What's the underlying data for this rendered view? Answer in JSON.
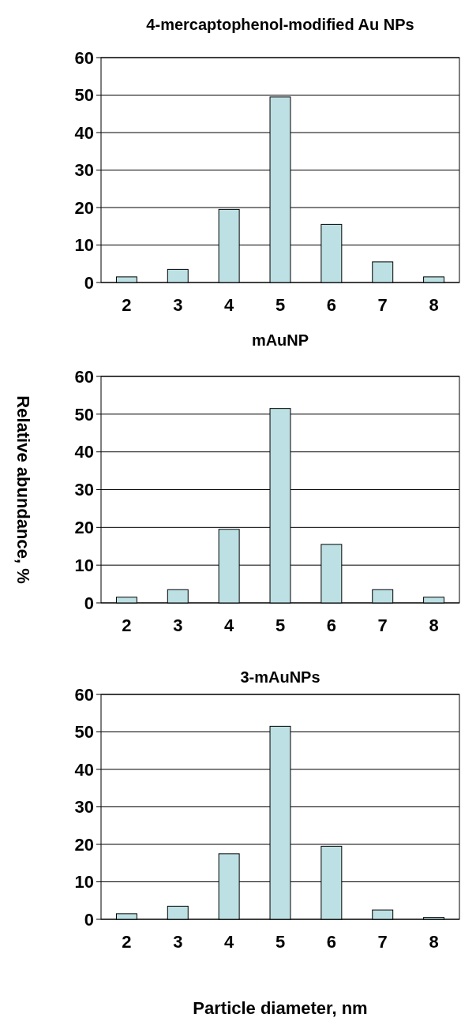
{
  "chart_data": [
    {
      "type": "bar",
      "title": "4-mercaptophenol-modified Au NPs",
      "categories": [
        "2",
        "3",
        "4",
        "5",
        "6",
        "7",
        "8"
      ],
      "values": [
        1.5,
        3.5,
        19.5,
        49.5,
        15.5,
        5.5,
        1.5
      ],
      "color": "#bce0e3",
      "ylim": [
        0,
        60
      ],
      "yticks": [
        0,
        10,
        20,
        30,
        40,
        50,
        60
      ],
      "grid": "y"
    },
    {
      "type": "bar",
      "title": "mAuNP",
      "ylabel": "Relative abundance, %",
      "categories": [
        "2",
        "3",
        "4",
        "5",
        "6",
        "7",
        "8"
      ],
      "values": [
        1.5,
        3.5,
        19.5,
        51.5,
        15.5,
        3.5,
        1.5
      ],
      "color": "#bce0e3",
      "ylim": [
        0,
        60
      ],
      "yticks": [
        0,
        10,
        20,
        30,
        40,
        50,
        60
      ],
      "grid": "y"
    },
    {
      "type": "bar",
      "title": "3-mAuNPs",
      "xlabel": "Particle diameter, nm",
      "categories": [
        "2",
        "3",
        "4",
        "5",
        "6",
        "7",
        "8"
      ],
      "values": [
        1.5,
        3.5,
        17.5,
        51.5,
        19.5,
        2.5,
        0.5
      ],
      "color": "#bce0e3",
      "ylim": [
        0,
        60
      ],
      "yticks": [
        0,
        10,
        20,
        30,
        40,
        50,
        60
      ],
      "grid": "y"
    }
  ]
}
